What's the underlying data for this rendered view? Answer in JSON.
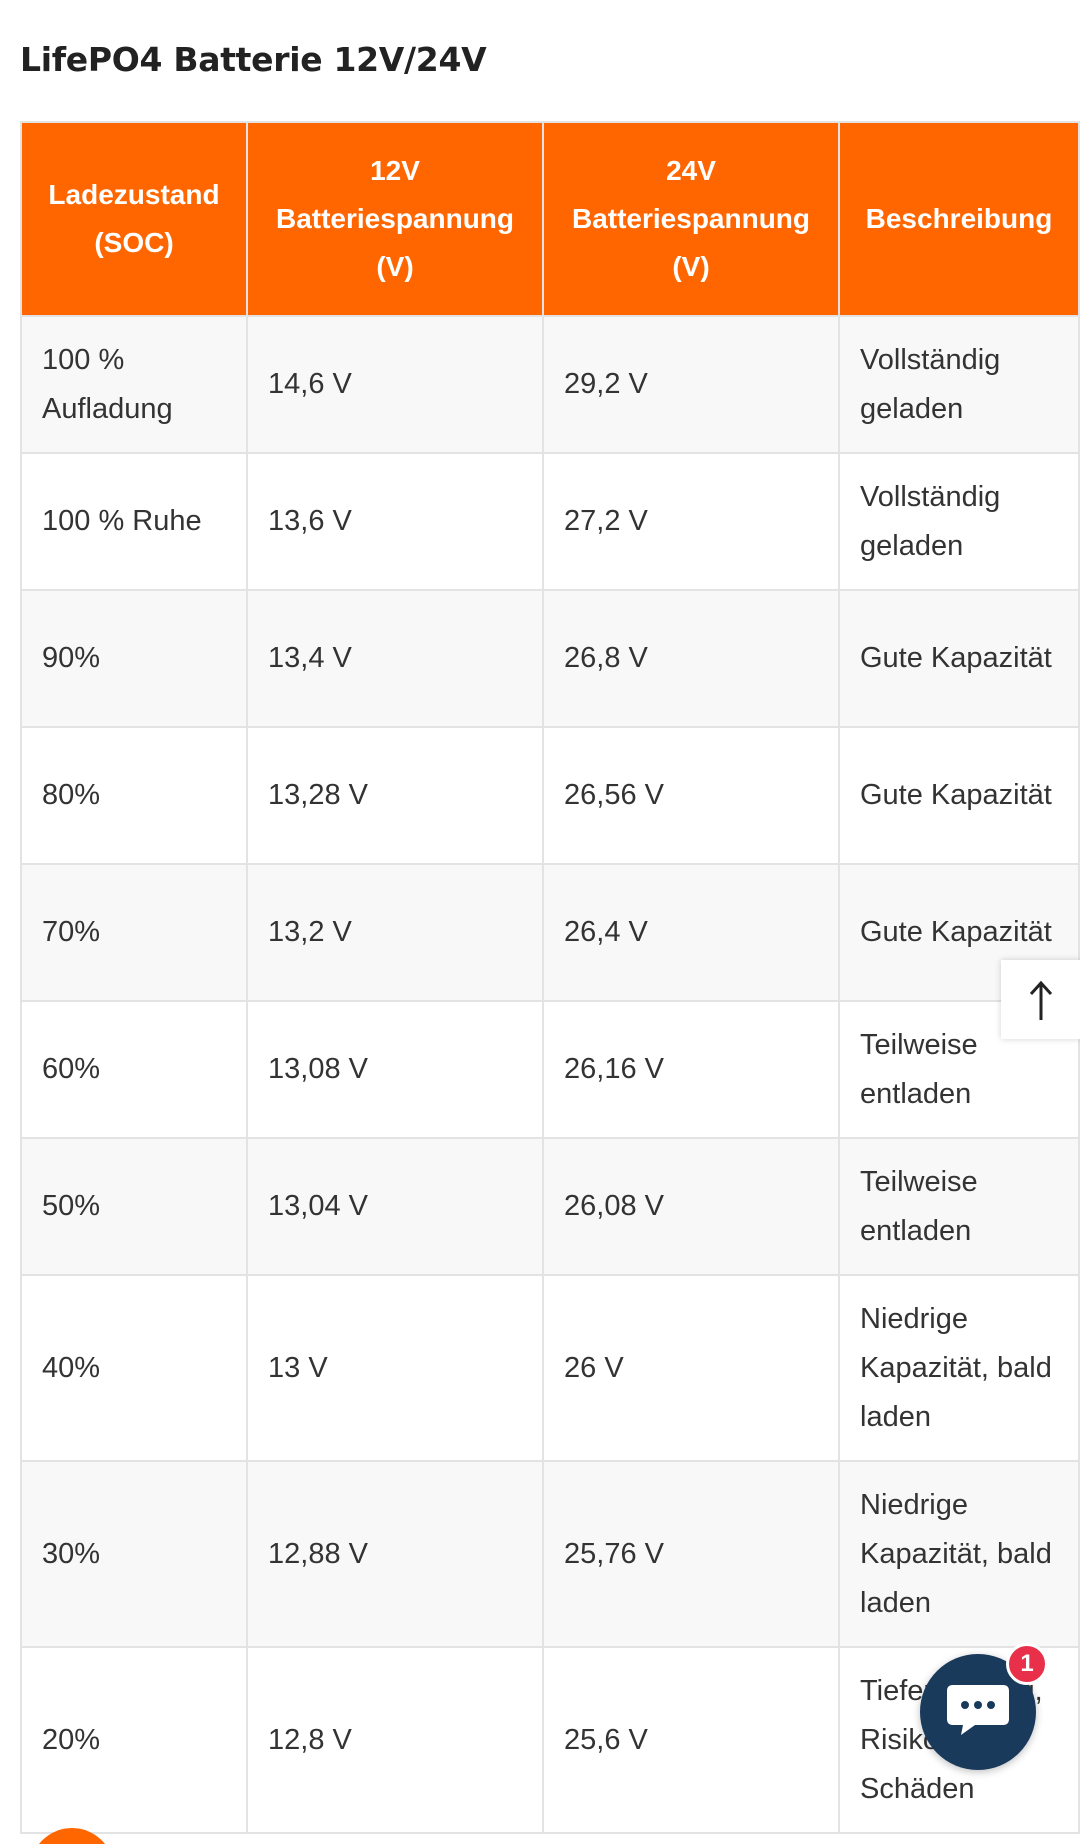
{
  "page": {
    "title": "LifePO4 Batterie 12V/24V"
  },
  "table": {
    "headers": [
      "Ladezustand (SOC)",
      "12V Batteriespannung (V)",
      "24V Batteriespannung (V)",
      "Beschreibung"
    ],
    "rows": [
      [
        "100 % Aufladung",
        "14,6 V",
        "29,2 V",
        "Vollständig geladen"
      ],
      [
        "100 % Ruhe",
        "13,6 V",
        "27,2 V",
        "Vollständig geladen"
      ],
      [
        "90%",
        "13,4 V",
        "26,8 V",
        "Gute Kapazität"
      ],
      [
        "80%",
        "13,28 V",
        "26,56 V",
        "Gute Kapazität"
      ],
      [
        "70%",
        "13,2 V",
        "26,4 V",
        "Gute Kapazität"
      ],
      [
        "60%",
        "13,08 V",
        "26,16 V",
        "Teilweise entladen"
      ],
      [
        "50%",
        "13,04 V",
        "26,08 V",
        "Teilweise entladen"
      ],
      [
        "40%",
        "13 V",
        "26 V",
        "Niedrige Kapazität, bald laden"
      ],
      [
        "30%",
        "12,88 V",
        "25,76 V",
        "Niedrige Kapazität, bald laden"
      ],
      [
        "20%",
        "12,8 V",
        "25,6 V",
        "Tiefentladung, Risiko Schäden"
      ]
    ]
  },
  "widgets": {
    "back_to_top_icon": "arrow-up-icon",
    "chat_icon": "chat-bubble-icon",
    "chat_badge_count": "1"
  },
  "colors": {
    "header_bg": "#ff6600",
    "chat_bg": "#1a3a5c",
    "badge_bg": "#e8304a"
  }
}
